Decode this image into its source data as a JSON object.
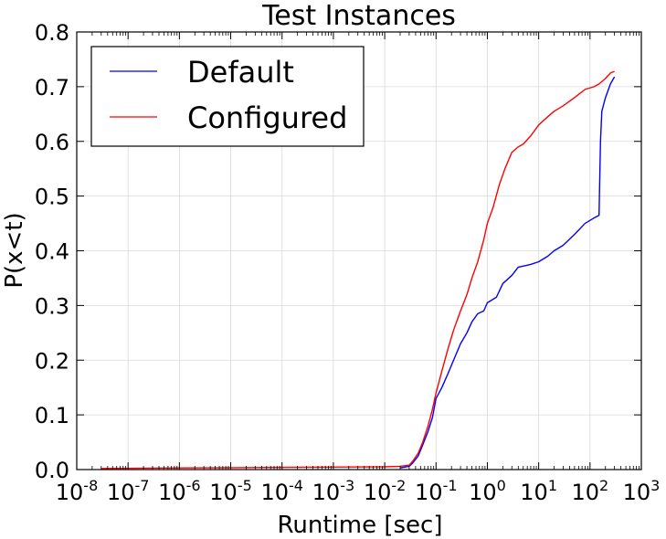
{
  "chart_data": {
    "type": "line",
    "title": "Test Instances",
    "xlabel": "Runtime [sec]",
    "ylabel": "P(x<t)",
    "xscale": "log",
    "xlim": [
      1e-08,
      1000
    ],
    "ylim": [
      0.0,
      0.8
    ],
    "grid": true,
    "legend_position": "top-left",
    "x_ticks": [
      {
        "base": "10",
        "exp": "-8"
      },
      {
        "base": "10",
        "exp": "-7"
      },
      {
        "base": "10",
        "exp": "-6"
      },
      {
        "base": "10",
        "exp": "-5"
      },
      {
        "base": "10",
        "exp": "-4"
      },
      {
        "base": "10",
        "exp": "-3"
      },
      {
        "base": "10",
        "exp": "-2"
      },
      {
        "base": "10",
        "exp": "-1"
      },
      {
        "base": "10",
        "exp": "0"
      },
      {
        "base": "10",
        "exp": "1"
      },
      {
        "base": "10",
        "exp": "2"
      },
      {
        "base": "10",
        "exp": "3"
      }
    ],
    "y_ticks": [
      "0.0",
      "0.1",
      "0.2",
      "0.3",
      "0.4",
      "0.5",
      "0.6",
      "0.7",
      "0.8"
    ],
    "series": [
      {
        "name": "Default",
        "color": "#0000ff",
        "x": [
          0.02,
          0.03,
          0.035,
          0.045,
          0.055,
          0.07,
          0.085,
          0.1,
          0.13,
          0.17,
          0.22,
          0.3,
          0.4,
          0.5,
          0.65,
          0.85,
          1.0,
          1.5,
          2.0,
          3.0,
          4.0,
          5.0,
          7.0,
          10.0,
          15.0,
          20.0,
          30.0,
          50.0,
          80.0,
          120.0,
          150.0,
          160.0,
          170.0,
          200.0,
          250.0,
          300.0
        ],
        "y": [
          0.003,
          0.006,
          0.012,
          0.025,
          0.045,
          0.07,
          0.095,
          0.13,
          0.15,
          0.175,
          0.2,
          0.23,
          0.25,
          0.27,
          0.285,
          0.29,
          0.305,
          0.315,
          0.34,
          0.355,
          0.37,
          0.372,
          0.375,
          0.38,
          0.39,
          0.4,
          0.41,
          0.43,
          0.45,
          0.46,
          0.465,
          0.6,
          0.655,
          0.68,
          0.705,
          0.718
        ]
      },
      {
        "name": "Configured",
        "color": "#ff0000",
        "x": [
          3e-08,
          1e-06,
          0.0001,
          0.01,
          0.02,
          0.03,
          0.035,
          0.045,
          0.055,
          0.07,
          0.085,
          0.1,
          0.13,
          0.17,
          0.22,
          0.3,
          0.4,
          0.5,
          0.65,
          0.85,
          1.0,
          1.3,
          1.7,
          2.2,
          3.0,
          4.0,
          5.0,
          7.0,
          10.0,
          15.0,
          20.0,
          30.0,
          50.0,
          80.0,
          120.0,
          150.0,
          200.0,
          250.0,
          300.0
        ],
        "y": [
          0.002,
          0.003,
          0.004,
          0.005,
          0.006,
          0.008,
          0.015,
          0.03,
          0.05,
          0.08,
          0.11,
          0.14,
          0.18,
          0.22,
          0.255,
          0.29,
          0.32,
          0.35,
          0.38,
          0.42,
          0.45,
          0.48,
          0.52,
          0.55,
          0.58,
          0.59,
          0.595,
          0.61,
          0.63,
          0.645,
          0.655,
          0.665,
          0.68,
          0.695,
          0.7,
          0.705,
          0.715,
          0.725,
          0.728
        ]
      }
    ]
  }
}
